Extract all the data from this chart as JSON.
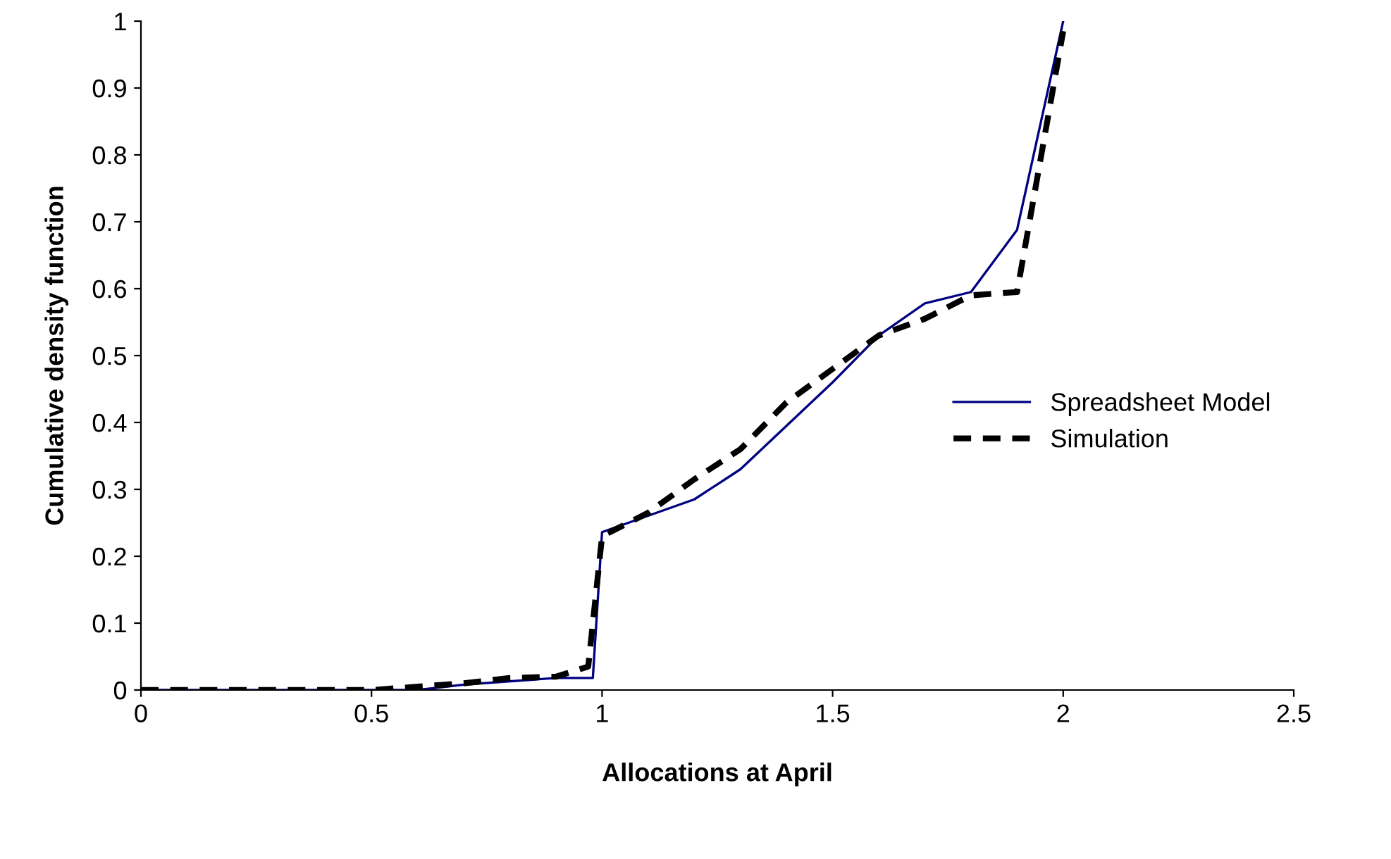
{
  "chart_data": {
    "type": "line",
    "xlabel": "Allocations at April",
    "ylabel": "Cumulative density function",
    "xlim": [
      0,
      2.5
    ],
    "xticks": [
      0,
      0.5,
      1,
      1.5,
      2,
      2.5
    ],
    "ylim": [
      0,
      1
    ],
    "yticks": [
      0,
      0.1,
      0.2,
      0.3,
      0.4,
      0.5,
      0.6,
      0.7,
      0.8,
      0.9,
      1
    ],
    "grid": false,
    "legend": "right",
    "marker": "none",
    "series": [
      {
        "name": "Spreadsheet Model",
        "color": "#000080",
        "line_style": "solid",
        "x": [
          0,
          0.5,
          0.6,
          0.7,
          0.9,
          0.98,
          1.0,
          1.2,
          1.3,
          1.5,
          1.6,
          1.7,
          1.8,
          1.9,
          2.0
        ],
        "values": [
          0,
          0,
          0,
          0.008,
          0.018,
          0.018,
          0.236,
          0.285,
          0.33,
          0.46,
          0.53,
          0.578,
          0.595,
          0.688,
          1.0
        ]
      },
      {
        "name": "Simulation",
        "color": "#000000",
        "line_style": "dashed",
        "x": [
          0,
          0.5,
          0.6,
          0.7,
          0.8,
          0.9,
          0.97,
          1.0,
          1.1,
          1.2,
          1.3,
          1.4,
          1.5,
          1.6,
          1.7,
          1.8,
          1.9,
          2.0
        ],
        "values": [
          0,
          0,
          0.005,
          0.01,
          0.018,
          0.02,
          0.035,
          0.23,
          0.265,
          0.315,
          0.36,
          0.43,
          0.48,
          0.53,
          0.555,
          0.59,
          0.595,
          0.985
        ]
      }
    ]
  }
}
